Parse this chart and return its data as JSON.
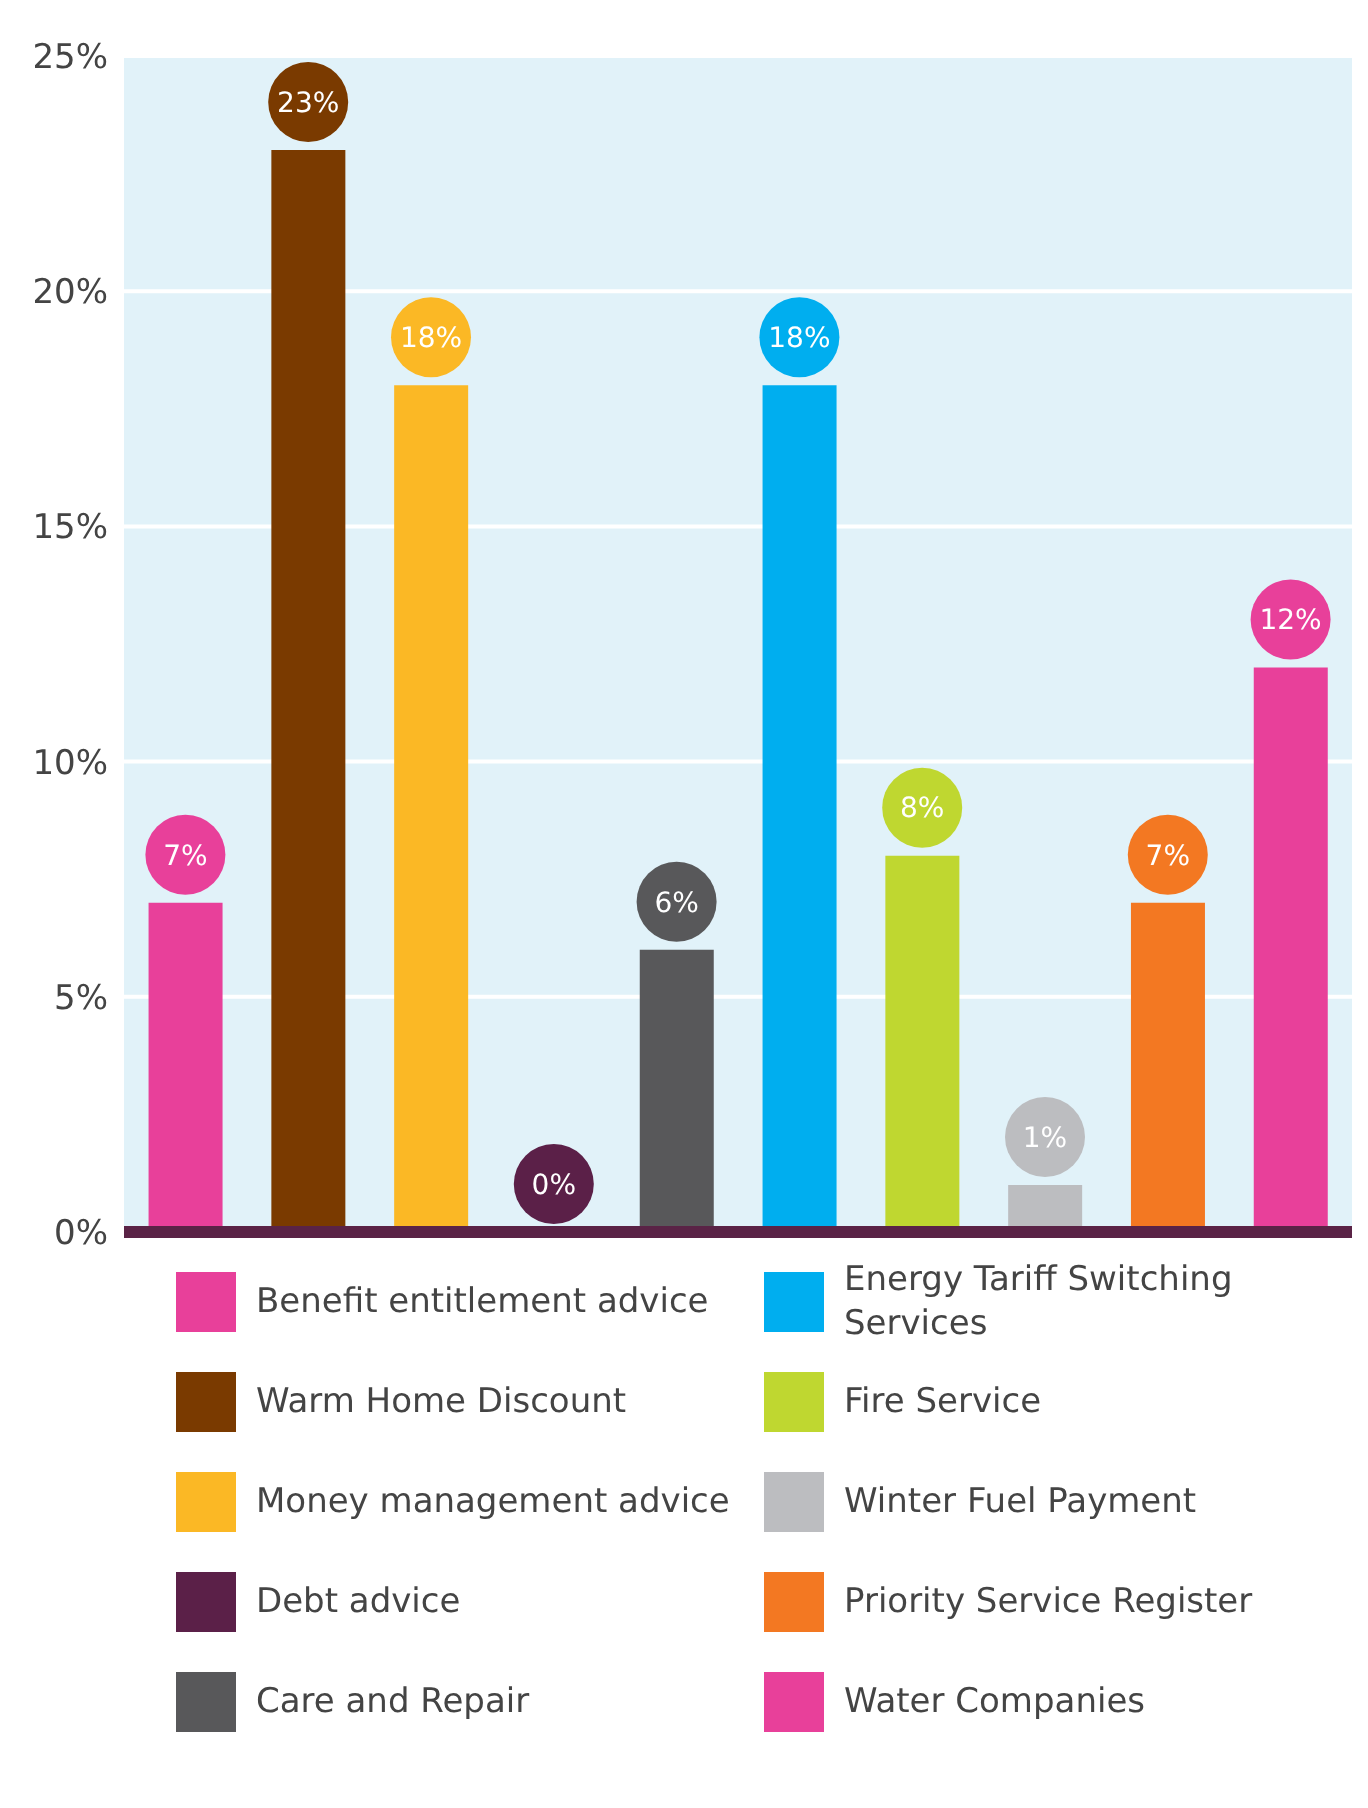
{
  "chart_data": {
    "type": "bar",
    "stacked": true,
    "categories": [
      null,
      null,
      null,
      null,
      null,
      null,
      null,
      null,
      null,
      null
    ],
    "series": [
      {
        "name": "Benefit entitlement advice",
        "color": "#e8409a",
        "values": [
          7,
          null,
          null,
          null,
          null,
          null,
          null,
          null,
          null,
          null
        ],
        "value_labels": [
          "7%",
          null,
          null,
          null,
          null,
          null,
          null,
          null,
          null,
          null
        ]
      },
      {
        "name": "Warm Home Discount",
        "color": "#7a3a00",
        "values": [
          null,
          23,
          null,
          null,
          null,
          null,
          null,
          null,
          null,
          null
        ],
        "value_labels": [
          null,
          "23%",
          null,
          null,
          null,
          null,
          null,
          null,
          null,
          null
        ]
      },
      {
        "name": "Money management advice",
        "color": "#fbb825",
        "values": [
          null,
          null,
          18,
          null,
          null,
          null,
          null,
          null,
          null,
          null
        ],
        "value_labels": [
          null,
          null,
          "18%",
          null,
          null,
          null,
          null,
          null,
          null,
          null
        ]
      },
      {
        "name": "Debt advice",
        "color": "#5b2048",
        "values": [
          null,
          null,
          null,
          0,
          null,
          null,
          null,
          null,
          null,
          null
        ],
        "value_labels": [
          null,
          null,
          null,
          "0%",
          null,
          null,
          null,
          null,
          null,
          null
        ]
      },
      {
        "name": "Care and Repair",
        "color": "#58585a",
        "values": [
          null,
          null,
          null,
          null,
          6,
          null,
          null,
          null,
          null,
          null
        ],
        "value_labels": [
          null,
          null,
          null,
          null,
          "6%",
          null,
          null,
          null,
          null,
          null
        ]
      },
      {
        "name": "Energy Tariff Switching Services",
        "color": "#00aeef",
        "values": [
          null,
          null,
          null,
          null,
          null,
          18,
          null,
          null,
          null,
          null
        ],
        "value_labels": [
          null,
          null,
          null,
          null,
          null,
          "18%",
          null,
          null,
          null,
          null
        ]
      },
      {
        "name": "Fire Service",
        "color": "#bfd730",
        "values": [
          null,
          null,
          null,
          null,
          null,
          null,
          8,
          null,
          null,
          null
        ],
        "value_labels": [
          null,
          null,
          null,
          null,
          null,
          null,
          "8%",
          null,
          null,
          null
        ]
      },
      {
        "name": "Winter Fuel Payment",
        "color": "#bcbdc0",
        "values": [
          null,
          null,
          null,
          null,
          null,
          null,
          null,
          1,
          null,
          null
        ],
        "value_labels": [
          null,
          null,
          null,
          null,
          null,
          null,
          null,
          "1%",
          null,
          null
        ]
      },
      {
        "name": "Priority Service Register",
        "color": "#f37822",
        "values": [
          null,
          null,
          null,
          null,
          null,
          null,
          null,
          null,
          7,
          null
        ],
        "value_labels": [
          null,
          null,
          null,
          null,
          null,
          null,
          null,
          null,
          "7%",
          null
        ]
      },
      {
        "name": "Water Companies",
        "color": "#e8409a",
        "values": [
          null,
          null,
          null,
          null,
          null,
          null,
          null,
          null,
          null,
          12
        ],
        "value_labels": [
          null,
          null,
          null,
          null,
          null,
          null,
          null,
          null,
          null,
          "12%"
        ]
      }
    ],
    "ylim": [
      0,
      25
    ],
    "yticks": [
      {
        "value": 0,
        "label": "0%"
      },
      {
        "value": 5,
        "label": "5%"
      },
      {
        "value": 10,
        "label": "10%"
      },
      {
        "value": 15,
        "label": "15%"
      },
      {
        "value": 20,
        "label": "20%"
      },
      {
        "value": 25,
        "label": "25%"
      }
    ],
    "grid": "y",
    "legend": "bottom",
    "tick_labels": "y"
  }
}
